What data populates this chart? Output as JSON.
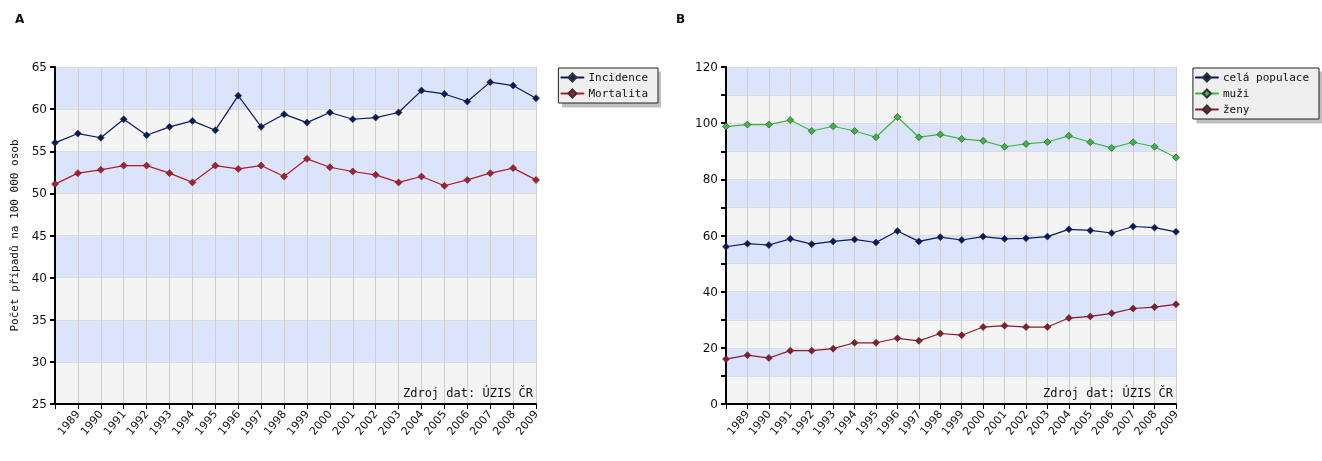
{
  "chart_data": [
    {
      "type": "line",
      "title": "A",
      "ylabel": "Počet případů na 100 000 osob",
      "categories": [
        null,
        "1989",
        "1990",
        "1991",
        "1992",
        "1993",
        "1994",
        "1995",
        "1996",
        "1997",
        "1998",
        "1999",
        "2000",
        "2001",
        "2002",
        "2003",
        "2004",
        "2005",
        "2006",
        "2007",
        "2008",
        "2009"
      ],
      "series": [
        {
          "name": "Incidence",
          "color": "#0a1a5c",
          "values": [
            56.0,
            57.1,
            56.6,
            58.8,
            56.9,
            57.9,
            58.6,
            57.5,
            61.6,
            57.9,
            59.4,
            58.4,
            59.6,
            58.8,
            59.0,
            59.6,
            62.2,
            61.8,
            60.9,
            63.2,
            62.8,
            61.3
          ]
        },
        {
          "name": "Mortalita",
          "color": "#b01c2c",
          "values": [
            51.1,
            52.4,
            52.8,
            53.3,
            53.3,
            52.4,
            51.3,
            53.3,
            52.9,
            53.3,
            52.0,
            54.1,
            53.1,
            52.6,
            52.2,
            51.3,
            52.0,
            50.9,
            51.6,
            52.4,
            53.0,
            51.6
          ]
        }
      ],
      "ylim": [
        25,
        65
      ],
      "yticks": [
        25,
        30,
        35,
        40,
        45,
        50,
        55,
        60,
        65
      ],
      "grid": true,
      "legend": "top right",
      "marker": "diamond",
      "line_style": "solid",
      "annotations": [
        "Zdroj dat: ÚZIS ČR"
      ]
    },
    {
      "type": "line",
      "title": "B",
      "categories": [
        null,
        "1989",
        "1990",
        "1991",
        "1992",
        "1993",
        "1994",
        "1995",
        "1996",
        "1997",
        "1998",
        "1999",
        "2000",
        "2001",
        "2002",
        "2003",
        "2004",
        "2005",
        "2006",
        "2007",
        "2008",
        "2009"
      ],
      "series": [
        {
          "name": "celá populace",
          "color": "#0a1a5c",
          "values": [
            56.0,
            57.1,
            56.6,
            58.8,
            56.9,
            57.9,
            58.6,
            57.5,
            61.6,
            57.9,
            59.4,
            58.4,
            59.6,
            58.8,
            59.0,
            59.6,
            62.2,
            61.8,
            60.9,
            63.2,
            62.8,
            61.3
          ]
        },
        {
          "name": "muži",
          "color": "#3cb83c",
          "values": [
            98.8,
            99.5,
            99.5,
            101.1,
            97.2,
            98.9,
            97.2,
            95.0,
            102.2,
            95.0,
            96.0,
            94.4,
            93.7,
            91.6,
            92.6,
            93.3,
            95.5,
            93.2,
            91.2,
            93.2,
            91.6,
            87.8
          ]
        },
        {
          "name": "ženy",
          "color": "#8b1a2a",
          "values": [
            16.0,
            17.4,
            16.4,
            19.0,
            19.0,
            19.7,
            21.8,
            21.8,
            23.4,
            22.5,
            25.1,
            24.5,
            27.4,
            27.9,
            27.4,
            27.4,
            30.6,
            31.2,
            32.3,
            34.0,
            34.5,
            35.5
          ]
        }
      ],
      "ylim": [
        0,
        120
      ],
      "yticks": [
        0,
        {
          "value": 10,
          "label": null
        },
        20,
        {
          "value": 30,
          "label": null
        },
        40,
        {
          "value": 50,
          "label": null
        },
        60,
        {
          "value": 70,
          "label": null
        },
        80,
        {
          "value": 90,
          "label": null
        },
        100,
        {
          "value": 110,
          "label": null
        },
        120
      ],
      "grid": true,
      "legend": "top right",
      "marker": "diamond",
      "line_style": "solid",
      "annotations": [
        "Zdroj dat: ÚZIS ČR"
      ]
    }
  ]
}
